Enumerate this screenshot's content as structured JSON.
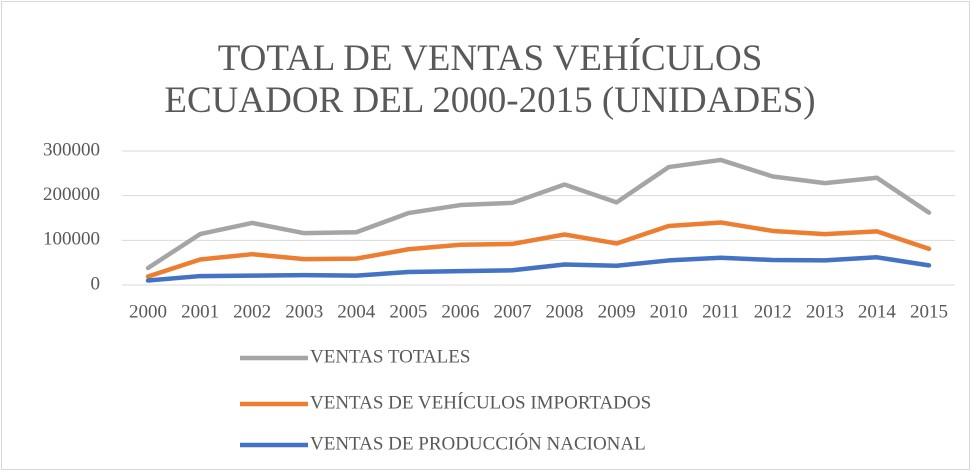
{
  "chart_data": {
    "type": "line",
    "title": "TOTAL DE VENTAS VEHÍCULOS ECUADOR DEL 2000-2015 (UNIDADES)",
    "categories": [
      "2000",
      "2001",
      "2002",
      "2003",
      "2004",
      "2005",
      "2006",
      "2007",
      "2008",
      "2009",
      "2010",
      "2011",
      "2012",
      "2013",
      "2014",
      "2015"
    ],
    "series": [
      {
        "name": "VENTAS TOTALES",
        "color": "#a5a5a5",
        "values": [
          38000,
          114000,
          139000,
          116000,
          118000,
          161000,
          179000,
          184000,
          225000,
          185000,
          264000,
          280000,
          243000,
          228000,
          240000,
          162000
        ]
      },
      {
        "name": "VENTAS DE VEHÍCULOS IMPORTADOS",
        "color": "#ed7d31",
        "values": [
          19000,
          57000,
          69000,
          58000,
          59000,
          80000,
          90000,
          92000,
          113000,
          93000,
          132000,
          140000,
          121000,
          114000,
          120000,
          81000
        ]
      },
      {
        "name": "VENTAS DE PRODUCCIÓN NACIONAL",
        "color": "#4472c4",
        "values": [
          10000,
          20000,
          21000,
          22000,
          21000,
          29000,
          31000,
          33000,
          46000,
          43000,
          55000,
          61000,
          56000,
          55000,
          62000,
          44000
        ]
      }
    ],
    "ylim": [
      0,
      300000
    ],
    "yticks": [
      0,
      100000,
      200000,
      300000
    ],
    "grid": true,
    "legend": "bottom"
  }
}
